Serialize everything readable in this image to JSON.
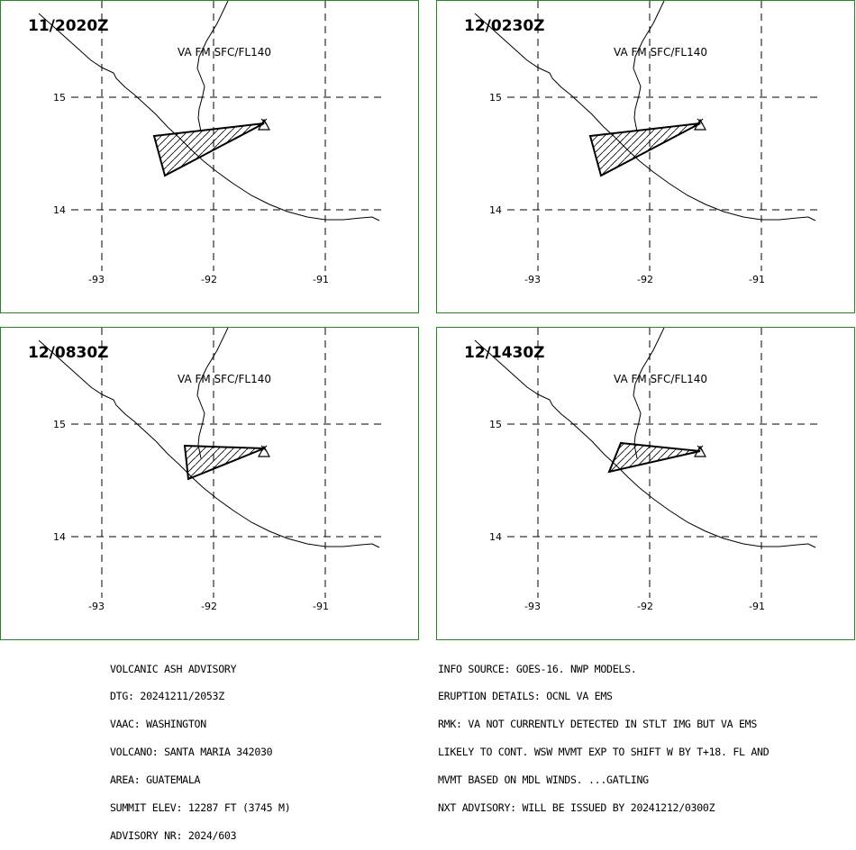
{
  "panels": [
    {
      "time": "11/2020Z",
      "label": "VA FM SFC/FL140",
      "lat_labels": [
        "15",
        "14"
      ],
      "lon_labels": [
        "-93",
        "-92",
        "-91"
      ]
    },
    {
      "time": "12/0230Z",
      "label": "VA FM SFC/FL140",
      "lat_labels": [
        "15",
        "14"
      ],
      "lon_labels": [
        "-93",
        "-92",
        "-91"
      ]
    },
    {
      "time": "12/0830Z",
      "label": "VA FM SFC/FL140",
      "lat_labels": [
        "15",
        "14"
      ],
      "lon_labels": [
        "-93",
        "-92",
        "-91"
      ]
    },
    {
      "time": "12/1430Z",
      "label": "VA FM SFC/FL140",
      "lat_labels": [
        "15",
        "14"
      ],
      "lon_labels": [
        "-93",
        "-92",
        "-91"
      ]
    }
  ],
  "advisory_left": [
    "VOLCANIC ASH ADVISORY",
    "DTG: 20241211/2053Z",
    "VAAC: WASHINGTON",
    "VOLCANO: SANTA MARIA 342030",
    "AREA: GUATEMALA",
    "SUMMIT ELEV: 12287 FT (3745 M)",
    "ADVISORY NR: 2024/603"
  ],
  "advisory_right": [
    "INFO SOURCE: GOES-16. NWP MODELS.",
    "ERUPTION DETAILS: OCNL VA EMS",
    "RMK: VA NOT CURRENTLY DETECTED IN STLT IMG BUT VA EMS",
    "LIKELY TO CONT. WSW MVMT EXP TO SHIFT W BY T+18. FL AND",
    "MVMT BASED ON MDL WINDS. ...GATLING",
    "NXT ADVISORY: WILL BE ISSUED BY 20241212/0300Z"
  ],
  "colors": {
    "border": "#1f8a1f",
    "lines": "#000000",
    "background": "#ffffff"
  }
}
